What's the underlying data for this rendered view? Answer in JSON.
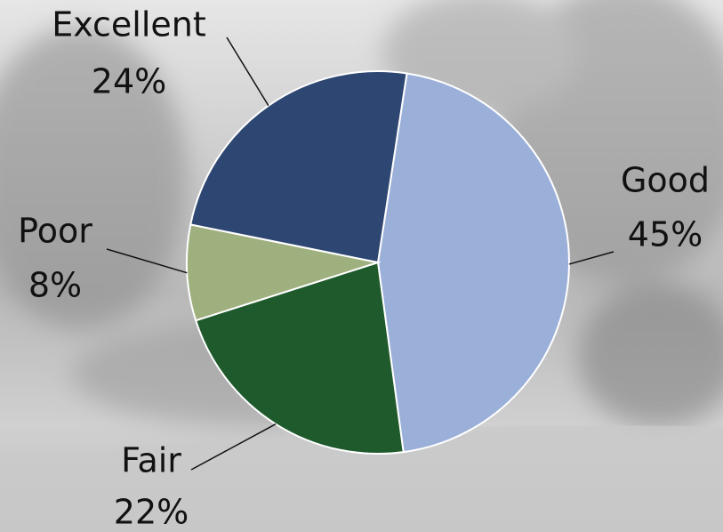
{
  "chart_data": {
    "type": "pie",
    "categories": [
      "Good",
      "Fair",
      "Poor",
      "Excellent"
    ],
    "values": [
      45,
      22,
      8,
      24
    ],
    "value_labels": [
      "45%",
      "22%",
      "8%",
      "24%"
    ],
    "colors": [
      "#9bb0d9",
      "#1f5a2c",
      "#9fb07f",
      "#2e4772"
    ]
  }
}
